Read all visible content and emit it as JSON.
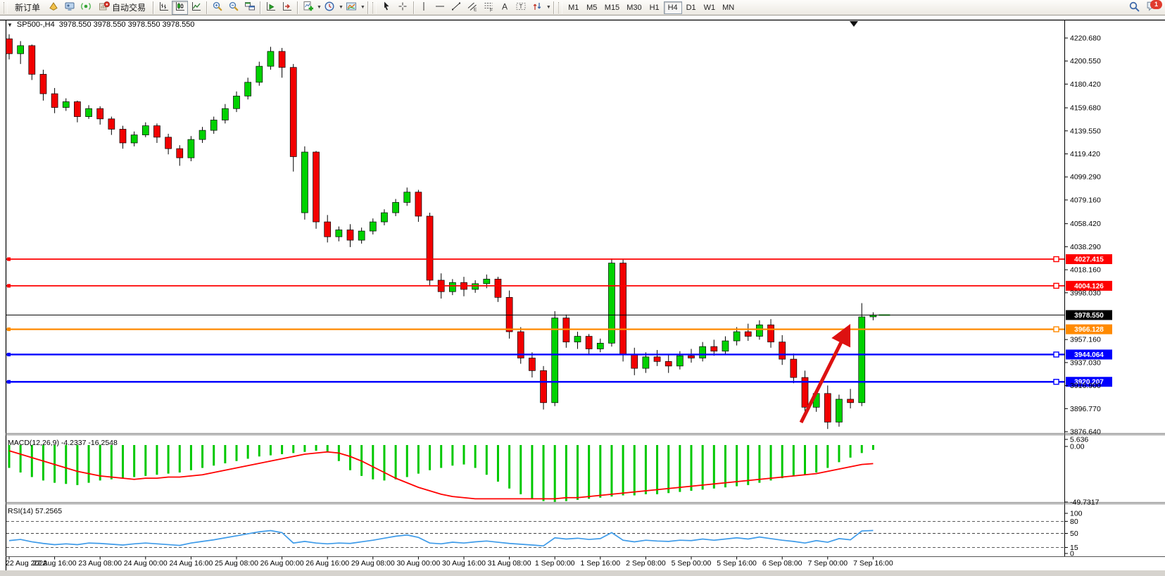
{
  "toolbar": {
    "new_order": "新订单",
    "auto_trading": "自动交易",
    "timeframes": [
      "M1",
      "M5",
      "M15",
      "M30",
      "H1",
      "H4",
      "D1",
      "W1",
      "MN"
    ],
    "active_timeframe": "H4",
    "notification_count": "1",
    "icon_buttons": [
      "metaeditor-icon",
      "terminal-icon",
      "signals-icon",
      "autotrading-icon",
      "bar-chart-icon",
      "candlestick-icon",
      "line-chart-icon",
      "zoom-in-icon",
      "zoom-out-icon",
      "tile-windows-icon",
      "auto-scroll-icon",
      "chart-shift-icon",
      "indicators-icon",
      "periods-icon",
      "templates-icon",
      "cursor-icon",
      "crosshair-icon",
      "vertical-line-icon",
      "horizontal-line-icon",
      "trendline-icon",
      "equidistant-channel-icon",
      "fibonacci-icon",
      "text-icon",
      "text-label-icon",
      "arrows-icon",
      "search-icon",
      "chat-icon"
    ]
  },
  "chart": {
    "symbol_period": "SP500-,H4",
    "quote_line": "3978.550 3978.550 3978.550 3978.550"
  },
  "indicators": {
    "macd_label": "MACD(12,26,9) -4.2337 -16.2548",
    "rsi_label": "RSI(14) 57.2565"
  },
  "chart_data": {
    "type": "candlestick",
    "symbol": "SP500-",
    "timeframe": "H4",
    "current_price": "3978.550",
    "price_axis_ticks": [
      "4220.680",
      "4200.550",
      "4180.420",
      "4159.680",
      "4139.550",
      "4119.420",
      "4099.290",
      "4079.160",
      "4058.420",
      "4038.290",
      "4018.160",
      "3998.030",
      "3957.160",
      "3937.030",
      "3916.900",
      "3896.770",
      "3876.640"
    ],
    "x_axis_labels": [
      "22 Aug 2022",
      "22 Aug 16:00",
      "23 Aug 08:00",
      "24 Aug 00:00",
      "24 Aug 16:00",
      "25 Aug 08:00",
      "26 Aug 00:00",
      "26 Aug 16:00",
      "29 Aug 08:00",
      "30 Aug 00:00",
      "30 Aug 16:00",
      "31 Aug 08:00",
      "1 Sep 00:00",
      "1 Sep 16:00",
      "2 Sep 08:00",
      "5 Sep 00:00",
      "5 Sep 16:00",
      "6 Sep 08:00",
      "7 Sep 00:00",
      "7 Sep 16:00"
    ],
    "bars_per_label": 4,
    "candles_ohlc": [
      [
        4220,
        4224,
        4202,
        4207
      ],
      [
        4207,
        4218,
        4198,
        4214
      ],
      [
        4214,
        4215,
        4184,
        4189
      ],
      [
        4189,
        4193,
        4166,
        4172
      ],
      [
        4172,
        4177,
        4155,
        4160
      ],
      [
        4160,
        4168,
        4157,
        4165
      ],
      [
        4165,
        4166,
        4147,
        4152
      ],
      [
        4152,
        4162,
        4150,
        4159
      ],
      [
        4159,
        4161,
        4145,
        4150
      ],
      [
        4150,
        4152,
        4136,
        4141
      ],
      [
        4141,
        4144,
        4124,
        4129
      ],
      [
        4129,
        4139,
        4126,
        4136
      ],
      [
        4136,
        4147,
        4134,
        4144
      ],
      [
        4144,
        4146,
        4129,
        4134
      ],
      [
        4134,
        4137,
        4119,
        4124
      ],
      [
        4124,
        4127,
        4109,
        4116
      ],
      [
        4116,
        4135,
        4113,
        4132
      ],
      [
        4132,
        4143,
        4129,
        4140
      ],
      [
        4140,
        4152,
        4137,
        4149
      ],
      [
        4149,
        4163,
        4146,
        4159
      ],
      [
        4159,
        4174,
        4156,
        4170
      ],
      [
        4170,
        4186,
        4167,
        4182
      ],
      [
        4182,
        4200,
        4179,
        4196
      ],
      [
        4196,
        4213,
        4193,
        4209
      ],
      [
        4209,
        4212,
        4186,
        4195
      ],
      [
        4195,
        4198,
        4104,
        4117
      ],
      [
        4068,
        4126,
        4062,
        4121
      ],
      [
        4121,
        4122,
        4054,
        4060
      ],
      [
        4060,
        4066,
        4042,
        4047
      ],
      [
        4047,
        4056,
        4043,
        4053
      ],
      [
        4053,
        4058,
        4038,
        4044
      ],
      [
        4044,
        4055,
        4041,
        4052
      ],
      [
        4052,
        4063,
        4049,
        4060
      ],
      [
        4060,
        4071,
        4057,
        4068
      ],
      [
        4068,
        4080,
        4065,
        4077
      ],
      [
        4077,
        4090,
        4074,
        4086
      ],
      [
        4086,
        4088,
        4060,
        4065
      ],
      [
        4065,
        4068,
        4004,
        4009
      ],
      [
        4009,
        4015,
        3993,
        3999
      ],
      [
        3999,
        4010,
        3996,
        4007
      ],
      [
        4007,
        4012,
        3995,
        4001
      ],
      [
        4001,
        4009,
        3998,
        4006
      ],
      [
        4006,
        4014,
        4002,
        4010
      ],
      [
        4010,
        4012,
        3990,
        3994
      ],
      [
        3994,
        4000,
        3958,
        3964
      ],
      [
        3964,
        3968,
        3936,
        3941
      ],
      [
        3941,
        3946,
        3924,
        3930
      ],
      [
        3930,
        3934,
        3896,
        3902
      ],
      [
        3902,
        3982,
        3899,
        3976
      ],
      [
        3976,
        3979,
        3950,
        3955
      ],
      [
        3955,
        3964,
        3949,
        3960
      ],
      [
        3960,
        3962,
        3944,
        3949
      ],
      [
        3949,
        3958,
        3946,
        3954
      ],
      [
        3954,
        4028,
        3951,
        4024
      ],
      [
        4024,
        4027,
        3938,
        3944
      ],
      [
        3944,
        3950,
        3926,
        3932
      ],
      [
        3932,
        3946,
        3928,
        3942
      ],
      [
        3942,
        3948,
        3934,
        3938
      ],
      [
        3938,
        3944,
        3928,
        3934
      ],
      [
        3934,
        3947,
        3931,
        3943
      ],
      [
        3943,
        3949,
        3937,
        3941
      ],
      [
        3941,
        3955,
        3938,
        3951
      ],
      [
        3951,
        3957,
        3943,
        3947
      ],
      [
        3947,
        3960,
        3944,
        3956
      ],
      [
        3956,
        3968,
        3952,
        3964
      ],
      [
        3964,
        3971,
        3956,
        3960
      ],
      [
        3960,
        3974,
        3957,
        3970
      ],
      [
        3970,
        3975,
        3950,
        3955
      ],
      [
        3955,
        3961,
        3935,
        3940
      ],
      [
        3940,
        3945,
        3919,
        3924
      ],
      [
        3924,
        3930,
        3892,
        3898
      ],
      [
        3898,
        3914,
        3894,
        3910
      ],
      [
        3910,
        3917,
        3879,
        3885
      ],
      [
        3885,
        3909,
        3881,
        3905
      ],
      [
        3905,
        3914,
        3897,
        3902
      ],
      [
        3902,
        3989,
        3899,
        3977
      ],
      [
        3977,
        3981,
        3974,
        3978.55
      ]
    ],
    "colors": {
      "up": "#00d200",
      "down": "#f20000",
      "wick": "#000000",
      "price_line": "#000000",
      "rsi_line": "#3e9be9",
      "macd_signal": "#ff0000",
      "macd_hist": "#00c800",
      "arrow": "#dd1111"
    },
    "horizontal_lines": [
      {
        "price": 4027.415,
        "label": "4027.415",
        "color": "#fe0000",
        "width": 1.8
      },
      {
        "price": 4004.126,
        "label": "4004.126",
        "color": "#fe0000",
        "width": 1.8
      },
      {
        "price": 3978.55,
        "label": "3978.550",
        "color": "#000000",
        "width": 1,
        "type": "current-price"
      },
      {
        "price": 3966.128,
        "label": "3966.128",
        "color": "#ff8a00",
        "width": 2.2
      },
      {
        "price": 3944.064,
        "label": "3944.064",
        "color": "#0000fe",
        "width": 2.4
      },
      {
        "price": 3920.207,
        "label": "3920.207",
        "color": "#0000fe",
        "width": 2.4
      }
    ],
    "annotations": [
      {
        "type": "arrow",
        "direction": "up-right",
        "color": "#dd1111"
      }
    ],
    "macd": {
      "params": "12,26,9",
      "value": -4.2337,
      "signal_value": -16.2548,
      "axis_ticks": [
        "5.636",
        "0.00",
        "-49.7317"
      ],
      "histogram": [
        -20,
        -24,
        -28,
        -31,
        -33,
        -34,
        -35,
        -33,
        -31,
        -30,
        -29,
        -28,
        -27,
        -26,
        -25,
        -24,
        -22,
        -20,
        -18,
        -16,
        -14,
        -12,
        -10,
        -9,
        -8,
        -7,
        -6,
        -5,
        -6,
        -14,
        -22,
        -27,
        -30,
        -31,
        -30,
        -28,
        -25,
        -22,
        -20,
        -18,
        -17,
        -20,
        -26,
        -32,
        -38,
        -43,
        -47,
        -49,
        -49.7,
        -49,
        -48,
        -47,
        -46,
        -45,
        -44,
        -44,
        -43,
        -43,
        -42,
        -41,
        -40,
        -39,
        -38,
        -37,
        -36,
        -35,
        -33,
        -31,
        -29,
        -27,
        -26,
        -24,
        -20,
        -15,
        -11,
        -7,
        -4.23
      ],
      "signal": [
        -5,
        -8,
        -11,
        -14,
        -17,
        -20,
        -23,
        -25,
        -27,
        -28,
        -29,
        -30,
        -29,
        -29,
        -28,
        -28,
        -27,
        -26,
        -24,
        -22,
        -20,
        -18,
        -16,
        -14,
        -12,
        -10,
        -8,
        -7,
        -6,
        -7,
        -10,
        -14,
        -19,
        -24,
        -29,
        -33,
        -37,
        -40,
        -43,
        -45,
        -46,
        -47,
        -47,
        -47,
        -47,
        -47,
        -47,
        -47,
        -47,
        -46,
        -46,
        -45,
        -44,
        -43,
        -42,
        -41,
        -40,
        -39,
        -38,
        -37,
        -36,
        -35,
        -34,
        -33,
        -32,
        -31,
        -30,
        -29,
        -28,
        -27,
        -26,
        -25,
        -23,
        -21,
        -19,
        -17,
        -16.25
      ]
    },
    "rsi": {
      "period": 14,
      "value": 57.2565,
      "axis_ticks": [
        "100",
        "80",
        "50",
        "15",
        "0"
      ],
      "levels": [
        80,
        50,
        15
      ],
      "values": [
        32,
        35,
        29,
        25,
        22,
        24,
        22,
        26,
        25,
        23,
        21,
        24,
        26,
        24,
        22,
        20,
        26,
        30,
        34,
        39,
        44,
        49,
        54,
        57,
        52,
        26,
        30,
        26,
        24,
        26,
        25,
        29,
        33,
        38,
        43,
        46,
        40,
        26,
        24,
        28,
        26,
        29,
        31,
        28,
        25,
        23,
        21,
        19,
        39,
        36,
        38,
        35,
        37,
        52,
        33,
        29,
        33,
        31,
        30,
        33,
        32,
        36,
        33,
        36,
        39,
        36,
        41,
        37,
        33,
        30,
        26,
        32,
        28,
        37,
        34,
        56,
        57.2565
      ]
    }
  }
}
